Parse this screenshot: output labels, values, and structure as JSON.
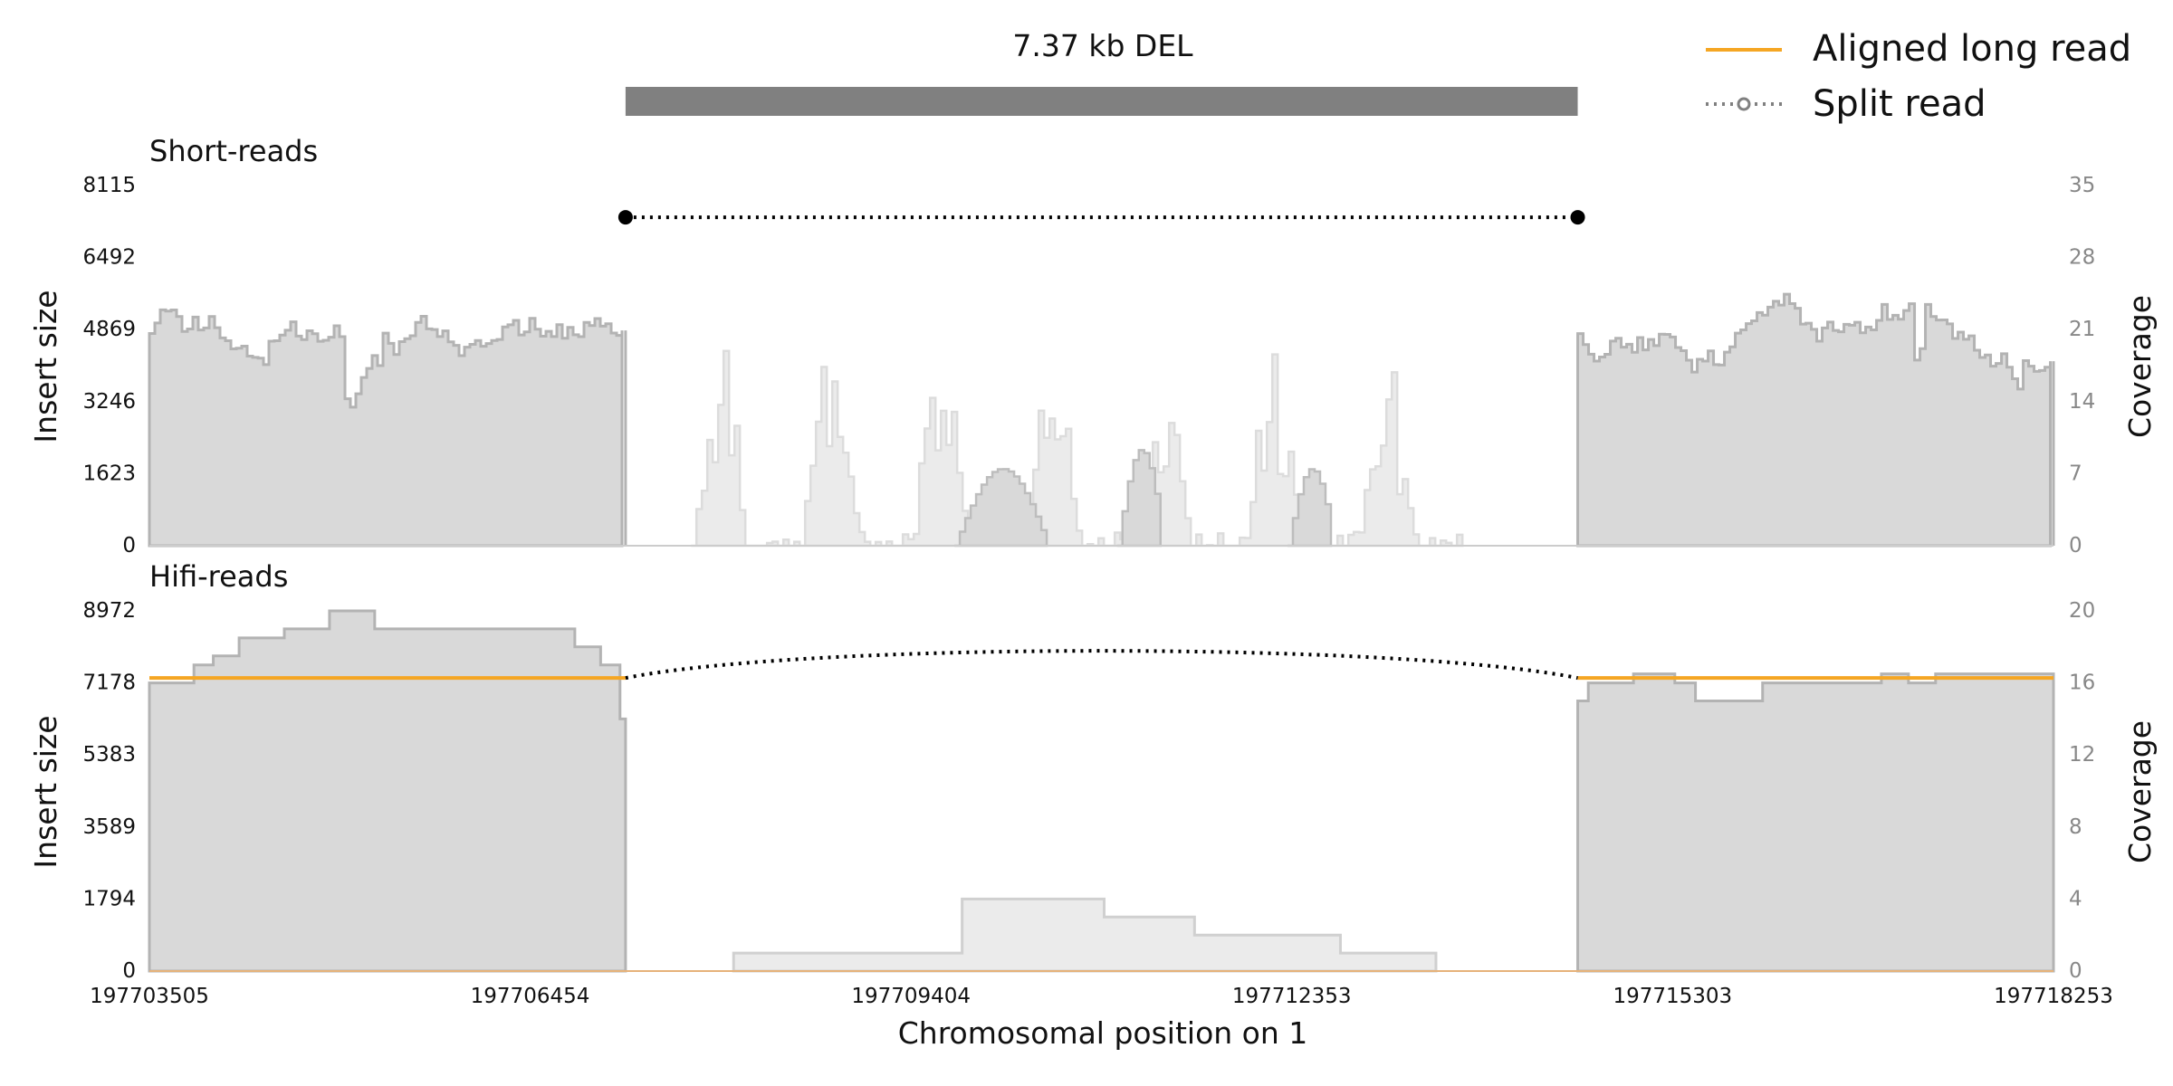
{
  "chart_data": {
    "type": "area",
    "title": "7.37 kb DEL",
    "xlabel": "Chromosomal position on 1",
    "xlim": [
      197703505,
      197718253
    ],
    "x_ticks": [
      "197703505",
      "197706454",
      "197709404",
      "197712353",
      "197715303",
      "197718253"
    ],
    "deletion": {
      "start": 197707193,
      "end": 197714568,
      "label": "7.37 kb DEL",
      "color": "#808080"
    },
    "legend": {
      "position": "top-right",
      "items": [
        {
          "label": "Aligned long read",
          "color": "#F5A623",
          "style": "line"
        },
        {
          "label": "Split read",
          "color": "#808080",
          "style": "dotted-circle"
        }
      ]
    },
    "panels": [
      {
        "name": "Short-reads",
        "ylabel_left": "Insert size",
        "ylabel_right": "Coverage",
        "left_ticks": [
          "0",
          "1623",
          "3246",
          "4869",
          "6492",
          "8115"
        ],
        "right_ticks": [
          "0",
          "7",
          "14",
          "21",
          "28",
          "35"
        ],
        "left_ylim": [
          0,
          8115
        ],
        "right_ylim": [
          0,
          37.5
        ],
        "coverage_segments": [
          {
            "x_start": 197703505,
            "x_end": 197707193,
            "level_base": 22,
            "level_range": [
              13,
              37
            ],
            "style": "dark"
          },
          {
            "x_start": 197707700,
            "x_end": 197713700,
            "level_base": 6,
            "level_range": [
              0,
              26
            ],
            "style": "light"
          },
          {
            "x_start": 197714568,
            "x_end": 197718253,
            "level_base": 21,
            "level_range": [
              11,
              34
            ],
            "style": "dark"
          }
        ],
        "split_reads": [
          {
            "x1": 197707193,
            "x2": 197714568,
            "y": 7400,
            "style": "dotted-dot"
          }
        ]
      },
      {
        "name": "Hifi-reads",
        "ylabel_left": "Insert size",
        "ylabel_right": "Coverage",
        "left_ticks": [
          "0",
          "1794",
          "3589",
          "5383",
          "7178",
          "8972"
        ],
        "right_ticks": [
          "0",
          "4",
          "8",
          "12",
          "16",
          "20"
        ],
        "left_ylim": [
          0,
          8972
        ],
        "right_ylim": [
          0,
          20
        ],
        "coverage_steps": [
          {
            "x": 197703505,
            "c": 16
          },
          {
            "x": 197703850,
            "c": 17
          },
          {
            "x": 197704000,
            "c": 17.5
          },
          {
            "x": 197704200,
            "c": 18.5
          },
          {
            "x": 197704550,
            "c": 19
          },
          {
            "x": 197704900,
            "c": 20
          },
          {
            "x": 197705250,
            "c": 19
          },
          {
            "x": 197706800,
            "c": 18
          },
          {
            "x": 197707000,
            "c": 17
          },
          {
            "x": 197707150,
            "c": 14
          },
          {
            "x": 197707193,
            "c": 0
          },
          {
            "x": 197708030,
            "c": 1
          },
          {
            "x": 197709800,
            "c": 4
          },
          {
            "x": 197710900,
            "c": 3
          },
          {
            "x": 197711600,
            "c": 2
          },
          {
            "x": 197712730,
            "c": 1
          },
          {
            "x": 197713470,
            "c": 0
          },
          {
            "x": 197714568,
            "c": 15
          },
          {
            "x": 197714650,
            "c": 16
          },
          {
            "x": 197715000,
            "c": 16.5
          },
          {
            "x": 197715320,
            "c": 16
          },
          {
            "x": 197715480,
            "c": 15
          },
          {
            "x": 197716000,
            "c": 16
          },
          {
            "x": 197716920,
            "c": 16.5
          },
          {
            "x": 197717130,
            "c": 16
          },
          {
            "x": 197717340,
            "c": 16.5
          },
          {
            "x": 197718253,
            "c": 16.5
          }
        ],
        "aligned_long_reads": [
          {
            "x1": 197703505,
            "x2": 197707193,
            "y": 7300
          },
          {
            "x1": 197714568,
            "x2": 197718253,
            "y": 7300
          }
        ],
        "split_reads": [
          {
            "x1": 197707193,
            "x2": 197714568,
            "y": 7300,
            "style": "dotted-arc"
          }
        ]
      }
    ]
  }
}
